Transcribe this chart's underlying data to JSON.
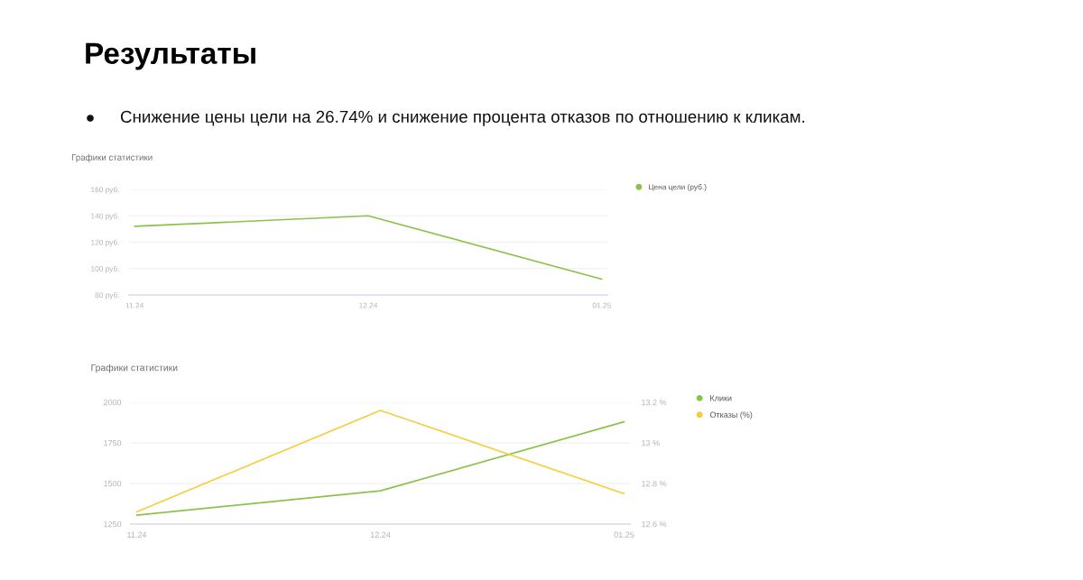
{
  "chart_data": [
    {
      "type": "line",
      "title": "Графики статистики",
      "annotations": [
        "Результаты",
        "Снижение цены цели на 26.74% и снижение процента отказов по отношению к кликам."
      ],
      "categories": [
        "11.24",
        "12.24",
        "01.25"
      ],
      "series": [
        {
          "name": "Цена цели (руб.)",
          "color": "#8bc34a",
          "values": [
            132,
            140,
            92
          ]
        }
      ],
      "ylim": [
        80,
        160
      ],
      "yticks": [
        {
          "value": 80,
          "label": "80 руб."
        },
        {
          "value": 100,
          "label": "100 руб."
        },
        {
          "value": 120,
          "label": "120 руб."
        },
        {
          "value": 140,
          "label": "140 руб."
        },
        {
          "value": 160,
          "label": "160 руб."
        }
      ],
      "grid": "y",
      "legend": "top right"
    },
    {
      "type": "line",
      "title": "Графики статистики",
      "categories": [
        "11.24",
        "12.24",
        "01.25"
      ],
      "series": [
        {
          "name": "Клики",
          "color": "#8bc34a",
          "values": [
            1305,
            1455,
            1880
          ]
        },
        {
          "name": "Отказы (%)",
          "color": "#f7cd3c",
          "axis": "y2",
          "values": [
            12.66,
            13.16,
            12.75
          ]
        }
      ],
      "ylim": [
        1250,
        2000
      ],
      "yticks": [
        1250,
        1500,
        1750,
        2000
      ],
      "y2lim": [
        12.6,
        13.2
      ],
      "y2ticks": [
        {
          "value": 12.6,
          "label": "12.6 %"
        },
        {
          "value": 12.8,
          "label": "12.8 %"
        },
        {
          "value": 13,
          "label": "13 %"
        },
        {
          "value": 13.2,
          "label": "13.2 %"
        }
      ],
      "grid": "y",
      "legend": "top right"
    }
  ]
}
